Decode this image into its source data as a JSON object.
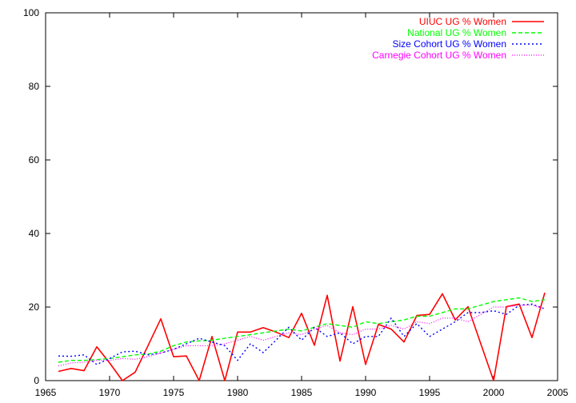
{
  "chart_data": {
    "type": "line",
    "title": "",
    "xlabel": "",
    "ylabel": "",
    "xlim": [
      1965,
      2005
    ],
    "ylim": [
      0,
      100
    ],
    "x_ticks": [
      1965,
      1970,
      1975,
      1980,
      1985,
      1990,
      1995,
      2000,
      2005
    ],
    "y_ticks": [
      0,
      20,
      40,
      60,
      80,
      100
    ],
    "x_tick_labels": [
      "1965",
      "1970",
      "1975",
      "1980",
      "1985",
      "1990",
      "1995",
      "2000",
      "2005"
    ],
    "y_tick_labels": [
      "0",
      "20",
      "40",
      "60",
      "80",
      "100"
    ],
    "grid": false,
    "legend_position": "top-right",
    "x": [
      1966,
      1967,
      1968,
      1969,
      1970,
      1971,
      1972,
      1973,
      1974,
      1975,
      1976,
      1977,
      1978,
      1979,
      1980,
      1981,
      1982,
      1983,
      1984,
      1985,
      1986,
      1987,
      1988,
      1989,
      1990,
      1991,
      1992,
      1993,
      1994,
      1995,
      1996,
      1997,
      1998,
      1999,
      2000,
      2001,
      2002,
      2003,
      2004
    ],
    "series": [
      {
        "name": "UIUC UG % Women",
        "color": "#ff0000",
        "dash": "solid",
        "values": [
          2.5,
          3.3,
          2.7,
          9.2,
          4.8,
          0,
          2.3,
          9.5,
          16.8,
          6.5,
          6.7,
          0,
          12.0,
          0,
          13.2,
          13.2,
          14.4,
          13.2,
          11.7,
          18.3,
          9.6,
          23.2,
          5.3,
          20.1,
          4.4,
          15.3,
          14.0,
          10.5,
          17.7,
          18.0,
          23.6,
          16.5,
          20.1,
          10.0,
          0,
          20.1,
          20.8,
          11.7,
          23.9
        ]
      },
      {
        "name": "National UG % Women",
        "color": "#00ff00",
        "dash": "dashed",
        "values": [
          5.0,
          5.5,
          5.5,
          5.7,
          6.0,
          6.5,
          7.0,
          7.2,
          8.0,
          9.5,
          10.5,
          10.8,
          11.0,
          11.5,
          12.0,
          12.5,
          13.0,
          13.5,
          14.0,
          13.5,
          14.5,
          15.5,
          15.0,
          14.5,
          16.0,
          15.5,
          16.0,
          16.5,
          17.5,
          17.5,
          18.5,
          19.5,
          19.5,
          20.5,
          21.5,
          22.0,
          22.5,
          21.5,
          22.0
        ]
      },
      {
        "name": "Size Cohort UG % Women",
        "color": "#0000ff",
        "dash": "dotted",
        "values": [
          6.7,
          6.6,
          7.0,
          4.4,
          6.0,
          7.8,
          8.0,
          7.0,
          7.5,
          8.5,
          10.0,
          11.5,
          10.5,
          9.5,
          5.5,
          10.0,
          7.6,
          11.0,
          14.5,
          11.0,
          14.5,
          12.0,
          13.0,
          10.0,
          12.0,
          12.0,
          17.0,
          12.0,
          15.5,
          12.0,
          14.0,
          16.0,
          18.5,
          18.5,
          19.0,
          18.0,
          20.5,
          20.8,
          19.5
        ]
      },
      {
        "name": "Carnegie Cohort UG % Women",
        "color": "#ff00ff",
        "dash": "fine-dotted",
        "values": [
          4.0,
          4.8,
          5.0,
          5.5,
          5.5,
          6.0,
          5.8,
          6.5,
          7.5,
          8.5,
          9.5,
          9.5,
          9.5,
          10.0,
          11.0,
          12.0,
          11.0,
          12.0,
          13.0,
          12.5,
          14.0,
          15.0,
          13.0,
          12.5,
          14.0,
          14.0,
          15.0,
          14.0,
          16.0,
          15.5,
          17.0,
          17.0,
          16.0,
          18.0,
          20.0,
          20.0,
          20.5,
          20.5,
          19.5
        ]
      }
    ]
  }
}
